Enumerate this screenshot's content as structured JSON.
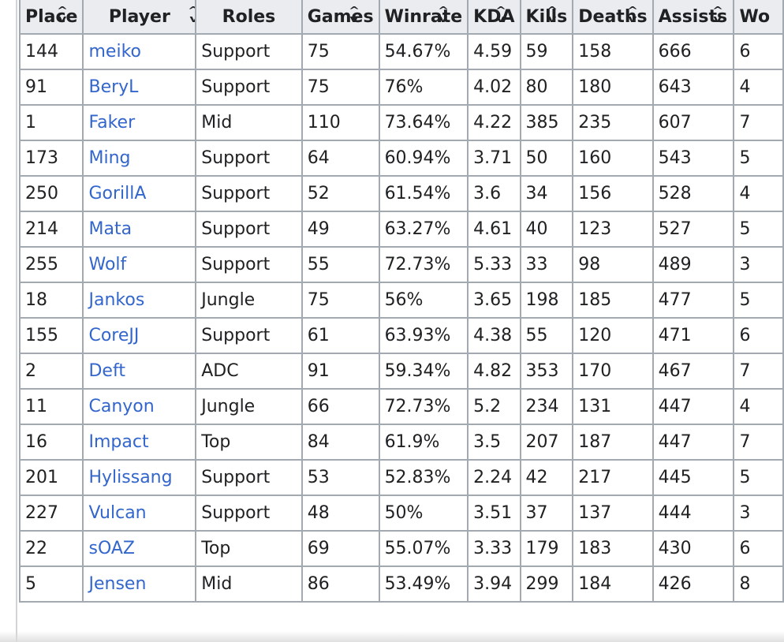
{
  "table": {
    "headers": [
      "Place",
      "Player",
      "Roles",
      "Games",
      "Winrate",
      "KDA",
      "Kills",
      "Deaths",
      "Assists",
      "Wo"
    ],
    "rows": [
      [
        "144",
        "meiko",
        "Support",
        "75",
        "54.67%",
        "4.59",
        "59",
        "158",
        "666",
        "6"
      ],
      [
        "91",
        "BeryL",
        "Support",
        "75",
        "76%",
        "4.02",
        "80",
        "180",
        "643",
        "4"
      ],
      [
        "1",
        "Faker",
        "Mid",
        "110",
        "73.64%",
        "4.22",
        "385",
        "235",
        "607",
        "7"
      ],
      [
        "173",
        "Ming",
        "Support",
        "64",
        "60.94%",
        "3.71",
        "50",
        "160",
        "543",
        "5"
      ],
      [
        "250",
        "GorillA",
        "Support",
        "52",
        "61.54%",
        "3.6",
        "34",
        "156",
        "528",
        "4"
      ],
      [
        "214",
        "Mata",
        "Support",
        "49",
        "63.27%",
        "4.61",
        "40",
        "123",
        "527",
        "5"
      ],
      [
        "255",
        "Wolf",
        "Support",
        "55",
        "72.73%",
        "5.33",
        "33",
        "98",
        "489",
        "3"
      ],
      [
        "18",
        "Jankos",
        "Jungle",
        "75",
        "56%",
        "3.65",
        "198",
        "185",
        "477",
        "5"
      ],
      [
        "155",
        "CoreJJ",
        "Support",
        "61",
        "63.93%",
        "4.38",
        "55",
        "120",
        "471",
        "6"
      ],
      [
        "2",
        "Deft",
        "ADC",
        "91",
        "59.34%",
        "4.82",
        "353",
        "170",
        "467",
        "7"
      ],
      [
        "11",
        "Canyon",
        "Jungle",
        "66",
        "72.73%",
        "5.2",
        "234",
        "131",
        "447",
        "4"
      ],
      [
        "16",
        "Impact",
        "Top",
        "84",
        "61.9%",
        "3.5",
        "207",
        "187",
        "447",
        "7"
      ],
      [
        "201",
        "Hylissang",
        "Support",
        "53",
        "52.83%",
        "2.24",
        "42",
        "217",
        "445",
        "5"
      ],
      [
        "227",
        "Vulcan",
        "Support",
        "48",
        "50%",
        "3.51",
        "37",
        "137",
        "444",
        "3"
      ],
      [
        "22",
        "sOAZ",
        "Top",
        "69",
        "55.07%",
        "3.33",
        "179",
        "183",
        "430",
        "6"
      ],
      [
        "5",
        "Jensen",
        "Mid",
        "86",
        "53.49%",
        "3.94",
        "299",
        "184",
        "426",
        "8"
      ]
    ]
  },
  "colors": {
    "link": "#3366cc",
    "header_bg": "#eaecf0",
    "border": "#a2a9b1",
    "text": "#202122"
  },
  "icons": {
    "sort": "sort-arrows-icon"
  }
}
